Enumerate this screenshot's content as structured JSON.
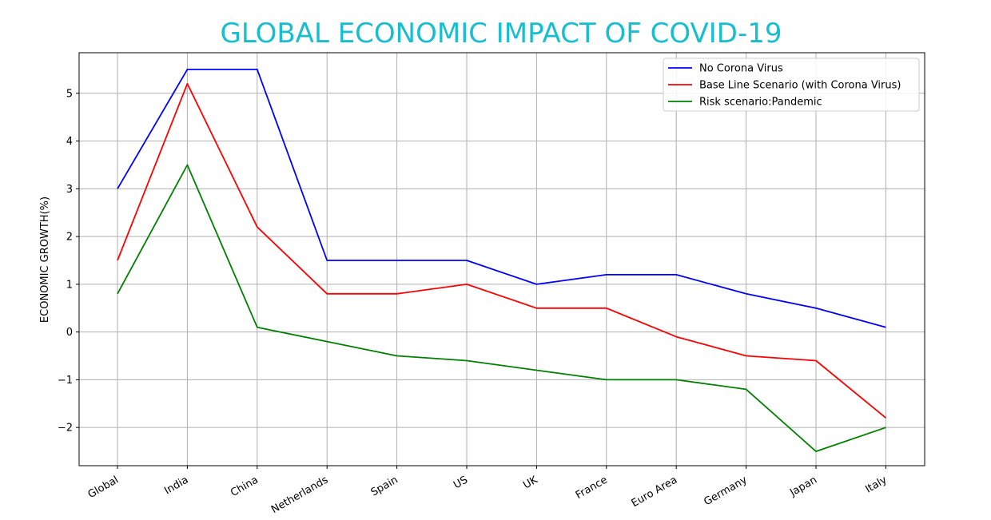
{
  "chart_data": {
    "type": "line",
    "title": "GLOBAL ECONOMIC IMPACT OF COVID-19",
    "xlabel": "",
    "ylabel": "ECONOMIC GROWTH(%)",
    "categories": [
      "Global",
      "India",
      "China",
      "Netherlands",
      "Spain",
      "US",
      "UK",
      "France",
      "Euro Area",
      "Germany",
      "Japan",
      "Italy"
    ],
    "ylim": [
      -2.8,
      5.85
    ],
    "yticks": [
      -2,
      -1,
      0,
      1,
      2,
      3,
      4,
      5
    ],
    "grid": true,
    "legend_position": "top-right",
    "title_color": "#17becf",
    "series": [
      {
        "name": "No Corona Virus",
        "color": "#0000ff",
        "values": [
          3.0,
          5.5,
          5.5,
          1.5,
          1.5,
          1.5,
          1.0,
          1.2,
          1.2,
          0.8,
          0.5,
          0.1
        ]
      },
      {
        "name": "Base Line Scenario (with Corona Virus)",
        "color": "#ff0000",
        "values": [
          1.5,
          5.2,
          2.2,
          0.8,
          0.8,
          1.0,
          0.5,
          0.5,
          -0.1,
          -0.5,
          -0.6,
          -1.8
        ]
      },
      {
        "name": "Risk scenario:Pandemic",
        "color": "#008000",
        "values": [
          0.8,
          3.5,
          0.1,
          -0.2,
          -0.5,
          -0.6,
          -0.8,
          -1.0,
          -1.0,
          -1.2,
          -2.5,
          -2.0
        ]
      }
    ]
  }
}
